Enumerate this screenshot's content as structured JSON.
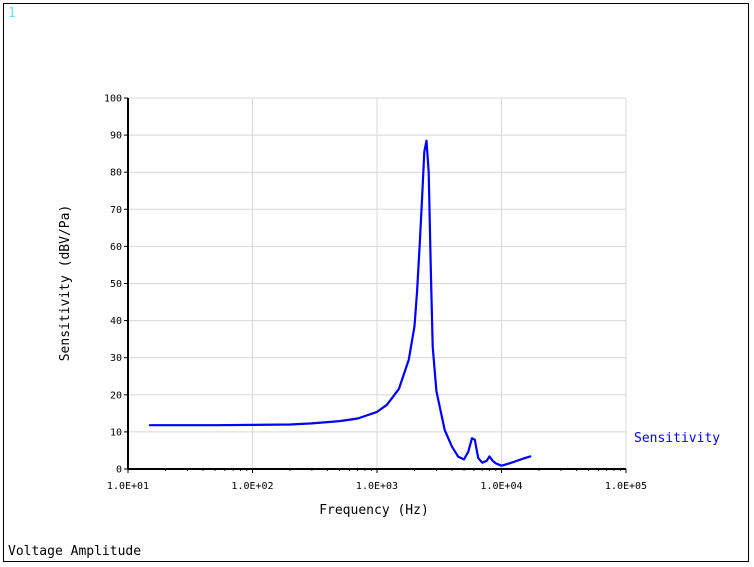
{
  "window": {
    "number": "1",
    "number_color": "#66e6e6"
  },
  "footer": {
    "label": "Voltage Amplitude"
  },
  "chart_data": {
    "type": "line",
    "xlabel": "Frequency (Hz)",
    "ylabel": "Sensitivity (dBV/Pa)",
    "x_scale": "log",
    "xlim": [
      10,
      100000
    ],
    "ylim": [
      0,
      100
    ],
    "x_tick_labels": [
      "1.0E+01",
      "1.0E+02",
      "1.0E+03",
      "1.0E+04",
      "1.0E+05"
    ],
    "x_tick_values": [
      10,
      100,
      1000,
      10000,
      100000
    ],
    "y_ticks": [
      0,
      10,
      20,
      30,
      40,
      50,
      60,
      70,
      80,
      90,
      100
    ],
    "grid": true,
    "legend_position": "right",
    "series": [
      {
        "name": "Sensitivity",
        "color": "#0000ff",
        "x": [
          15,
          30,
          50,
          100,
          200,
          300,
          500,
          700,
          1000,
          1200,
          1500,
          1800,
          2000,
          2100,
          2200,
          2300,
          2400,
          2500,
          2600,
          2700,
          2800,
          3000,
          3500,
          4000,
          4500,
          5000,
          5400,
          5800,
          6100,
          6500,
          7000,
          7600,
          8000,
          8500,
          9000,
          10000,
          11000,
          12500,
          15000,
          17000
        ],
        "y": [
          11.8,
          11.8,
          11.8,
          11.9,
          12.0,
          12.3,
          12.9,
          13.6,
          15.4,
          17.3,
          21.6,
          29.5,
          38.5,
          48.0,
          60.0,
          72.5,
          85.5,
          88.5,
          80.0,
          55.0,
          33.0,
          21.0,
          10.5,
          6.0,
          3.3,
          2.6,
          4.6,
          8.3,
          7.9,
          3.0,
          1.7,
          2.2,
          3.4,
          2.2,
          1.5,
          0.9,
          1.3,
          1.9,
          2.8,
          3.4
        ]
      }
    ]
  }
}
